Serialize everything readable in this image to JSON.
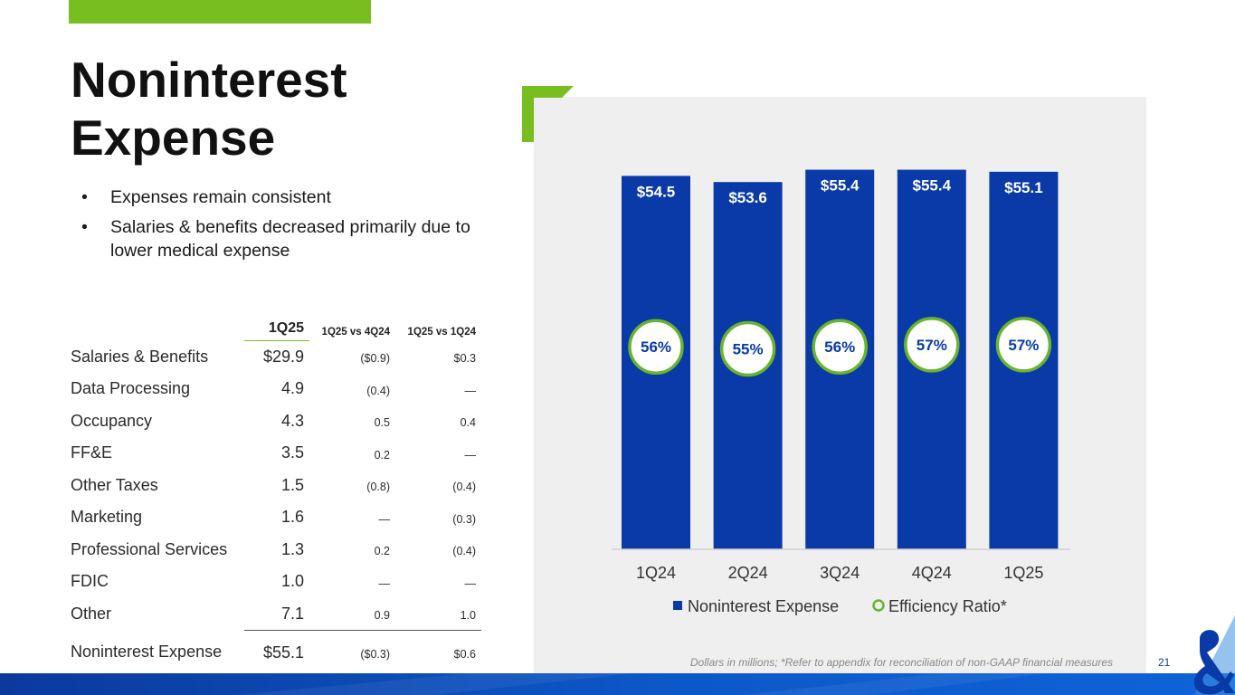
{
  "title": "Noninterest Expense",
  "bullets": [
    "Expenses remain consistent",
    "Salaries & benefits decreased primarily due to lower medical expense"
  ],
  "table": {
    "headers": [
      "1Q25",
      "1Q25 vs 4Q24",
      "1Q25 vs 1Q24"
    ],
    "rows": [
      {
        "label": "Salaries & Benefits",
        "cur": "$29.9",
        "vs_q": "($0.9)",
        "vs_y": "$0.3"
      },
      {
        "label": "Data Processing",
        "cur": "4.9",
        "vs_q": "(0.4)",
        "vs_y": "—"
      },
      {
        "label": "Occupancy",
        "cur": "4.3",
        "vs_q": "0.5",
        "vs_y": "0.4"
      },
      {
        "label": "FF&E",
        "cur": "3.5",
        "vs_q": "0.2",
        "vs_y": "—"
      },
      {
        "label": "Other Taxes",
        "cur": "1.5",
        "vs_q": "(0.8)",
        "vs_y": "(0.4)"
      },
      {
        "label": "Marketing",
        "cur": "1.6",
        "vs_q": "—",
        "vs_y": "(0.3)"
      },
      {
        "label": "Professional Services",
        "cur": "1.3",
        "vs_q": "0.2",
        "vs_y": "(0.4)"
      },
      {
        "label": "FDIC",
        "cur": "1.0",
        "vs_q": "—",
        "vs_y": "—"
      },
      {
        "label": "Other",
        "cur": "7.1",
        "vs_q": "0.9",
        "vs_y": "1.0"
      }
    ],
    "total": {
      "label": "Noninterest Expense",
      "cur": "$55.1",
      "vs_q": "($0.3)",
      "vs_y": "$0.6"
    }
  },
  "chart_data": {
    "type": "bar",
    "categories": [
      "1Q24",
      "2Q24",
      "3Q24",
      "4Q24",
      "1Q25"
    ],
    "series": [
      {
        "name": "Noninterest Expense",
        "values": [
          54.5,
          53.6,
          55.4,
          55.4,
          55.1
        ],
        "labels": [
          "$54.5",
          "$53.6",
          "$55.4",
          "$55.4",
          "$55.1"
        ]
      },
      {
        "name": "Efficiency Ratio*",
        "values": [
          56,
          55,
          56,
          57,
          57
        ],
        "labels": [
          "56%",
          "55%",
          "56%",
          "57%",
          "57%"
        ]
      }
    ],
    "ylim": [
      0,
      56
    ],
    "legend_position": "bottom",
    "units": "Dollars in millions"
  },
  "colors": {
    "bar": "#0a3aa8",
    "accent": "#78be20",
    "ratio_ring": "#6ab42d"
  },
  "footnote": "Dollars in millions; *Refer to appendix for reconciliation of non-GAAP financial measures",
  "page_number": "21"
}
